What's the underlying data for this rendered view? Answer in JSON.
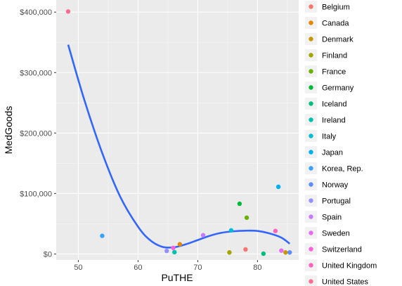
{
  "chart_data": {
    "type": "scatter",
    "xlabel": "PuTHE",
    "ylabel": "MedGoods",
    "xlim": [
      46.3,
      86.9
    ],
    "ylim": [
      -10000,
      420000
    ],
    "x_ticks": [
      50,
      60,
      70,
      80
    ],
    "x_tick_labels": [
      "50",
      "60",
      "70",
      "80"
    ],
    "y_ticks": [
      0,
      100000,
      200000,
      300000,
      400000
    ],
    "y_tick_labels": [
      "$0",
      "$100,000",
      "$200,000",
      "$300,000",
      "$400,000"
    ],
    "grid": true,
    "legend_position": "right",
    "series": [
      {
        "name": "Belgium",
        "color": "#F8766D",
        "x": 78.0,
        "y": 7500
      },
      {
        "name": "Canada",
        "color": "#E58700",
        "x": 67.0,
        "y": 16000
      },
      {
        "name": "Denmark",
        "color": "#C99800",
        "x": 84.7,
        "y": 2500
      },
      {
        "name": "Finland",
        "color": "#A3A500",
        "x": 75.3,
        "y": 2500
      },
      {
        "name": "France",
        "color": "#6BB100",
        "x": 78.2,
        "y": 60000
      },
      {
        "name": "Germany",
        "color": "#00BA38",
        "x": 77.0,
        "y": 83000
      },
      {
        "name": "Iceland",
        "color": "#00BF7D",
        "x": 81.0,
        "y": 500
      },
      {
        "name": "Ireland",
        "color": "#00C0AF",
        "x": 66.1,
        "y": 3000
      },
      {
        "name": "Italy",
        "color": "#00BCD8",
        "x": 75.6,
        "y": 39000
      },
      {
        "name": "Japan",
        "color": "#00B0F6",
        "x": 83.5,
        "y": 111000
      },
      {
        "name": "Korea, Rep.",
        "color": "#35A2FF",
        "x": 54.0,
        "y": 30000
      },
      {
        "name": "Norway",
        "color": "#5C8CFF",
        "x": 85.4,
        "y": 2500
      },
      {
        "name": "Portugal",
        "color": "#9590FF",
        "x": 64.8,
        "y": 5000
      },
      {
        "name": "Spain",
        "color": "#C77CFF",
        "x": 70.9,
        "y": 31000
      },
      {
        "name": "Sweden",
        "color": "#E76BF3",
        "x": 84.0,
        "y": 5500
      },
      {
        "name": "Switzerland",
        "color": "#FA62DB",
        "x": 65.9,
        "y": 10000
      },
      {
        "name": "United Kingdom",
        "color": "#FF62BC",
        "x": 83.0,
        "y": 38000
      },
      {
        "name": "United States",
        "color": "#FF6C91",
        "x": 48.3,
        "y": 401000
      }
    ],
    "smooth_line": {
      "color": "#3366FF",
      "x": [
        48.3,
        51,
        54,
        57,
        60,
        62,
        64,
        66,
        68,
        70,
        72,
        74,
        76,
        78,
        80,
        82,
        84,
        85.4
      ],
      "y": [
        346000,
        255000,
        167000,
        95000,
        45000,
        23000,
        12000,
        11000,
        16000,
        23000,
        30000,
        35000,
        37500,
        38500,
        38000,
        34000,
        27000,
        17000
      ]
    }
  }
}
